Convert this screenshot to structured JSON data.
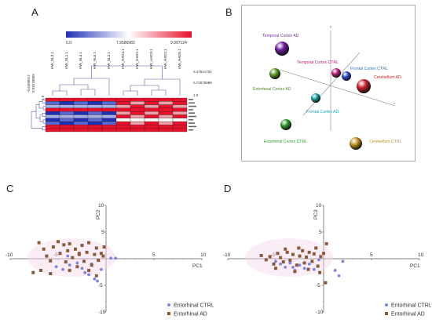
{
  "panels": {
    "A": {
      "letter": "A",
      "colorbar": {
        "min_label": "0.0",
        "mid_label": "7.9586983",
        "max_label": "9.997124",
        "colors": [
          "#1f30b5",
          "#ffffff",
          "#e8102a"
        ]
      },
      "columns": [
        "HW_NL3.1",
        "HW_NL1.1",
        "HW_NL4.1",
        "HW_NL6.1",
        "HW_NL2.1",
        "HW_HAD4.1",
        "HW_HAD1.1",
        "HW_HAD3.1",
        "HW_HAD2.1",
        "HW_HAD5.1"
      ],
      "dendro_scale": [
        "0.47941732",
        "0.73978889",
        "1.0"
      ],
      "row_scale": [
        "-0.6400017",
        "0.02578869",
        "1.0"
      ],
      "row_count": 10
    },
    "B": {
      "letter": "B",
      "axis_labels": {
        "y": "y",
        "x": "x"
      },
      "points": [
        {
          "label": "Temporal Cortex AD",
          "color": "#6a1c9a",
          "label_color": "#7a2aa8"
        },
        {
          "label": "Temporal Cortex CTRL",
          "color": "#c0207a",
          "label_color": "#c0207a"
        },
        {
          "label": "Frontal Cortex CTRL",
          "color": "#2a4bd0",
          "label_color": "#2a70c0"
        },
        {
          "label": "Cerebellum AD",
          "color": "#c8202a",
          "label_color": "#d02020"
        },
        {
          "label": "Entorhinal Cortex AD",
          "color": "#5a9a20",
          "label_color": "#4a8a30"
        },
        {
          "label": "Frontal Cortex AD",
          "color": "#1aa0a0",
          "label_color": "#20a0b0"
        },
        {
          "label": "Entorhinal Cortex CTRL",
          "color": "#2a9a2a",
          "label_color": "#2a9a2a"
        },
        {
          "label": "Cerebellum CTRL",
          "color": "#c09020",
          "label_color": "#c09020"
        }
      ]
    },
    "C": {
      "letter": "C",
      "chart_ref": 0
    },
    "D": {
      "letter": "D",
      "chart_ref": 1
    }
  },
  "chart_data": [
    {
      "type": "scatter",
      "title": "",
      "xlabel": "PC1",
      "ylabel": "PC2",
      "xlim": [
        -10,
        10
      ],
      "ylim": [
        -10,
        10
      ],
      "xticks": [
        -10,
        -5,
        0,
        5,
        10
      ],
      "yticks": [
        10,
        5,
        -5,
        -10
      ],
      "legend": "bottom-center",
      "series": [
        {
          "name": "Entorhinal CTRL",
          "color": "#7b86e0",
          "marker": "circle",
          "points": [
            [
              -5.2,
              -1.5
            ],
            [
              -4.5,
              -2.0
            ],
            [
              -3.8,
              -1.2
            ],
            [
              -2.5,
              -1.8
            ],
            [
              -2.2,
              -2.6
            ],
            [
              -1.8,
              -3.0
            ],
            [
              -1.2,
              -3.8
            ],
            [
              -0.9,
              -4.2
            ],
            [
              -0.5,
              -2.0
            ],
            [
              0.5,
              0.1
            ],
            [
              1.0,
              0.1
            ],
            [
              -3.0,
              -0.8
            ],
            [
              -1.5,
              -1.0
            ],
            [
              -4.0,
              0.5
            ]
          ]
        },
        {
          "name": "Entorhinal AD",
          "color": "#8a5a3a",
          "marker": "square",
          "points": [
            [
              -7.0,
              3.0
            ],
            [
              -6.5,
              1.8
            ],
            [
              -6.2,
              0.5
            ],
            [
              -5.8,
              -0.4
            ],
            [
              -5.5,
              2.2
            ],
            [
              -5.0,
              3.2
            ],
            [
              -4.8,
              1.0
            ],
            [
              -4.4,
              2.6
            ],
            [
              -4.2,
              -0.6
            ],
            [
              -4.0,
              1.5
            ],
            [
              -3.8,
              2.8
            ],
            [
              -3.5,
              0.2
            ],
            [
              -3.2,
              1.8
            ],
            [
              -3.0,
              -1.5
            ],
            [
              -2.8,
              0.8
            ],
            [
              -2.5,
              2.5
            ],
            [
              -2.3,
              -0.5
            ],
            [
              -2.0,
              1.2
            ],
            [
              -1.8,
              3.0
            ],
            [
              -1.5,
              -1.2
            ],
            [
              -1.2,
              0.8
            ],
            [
              -1.0,
              2.0
            ],
            [
              -0.8,
              -0.3
            ],
            [
              -0.5,
              1.0
            ],
            [
              -0.2,
              2.2
            ],
            [
              -7.6,
              -2.6
            ],
            [
              -6.8,
              -2.2
            ],
            [
              -5.8,
              -2.8
            ],
            [
              -3.8,
              -2.2
            ],
            [
              -1.8,
              -2.2
            ],
            [
              -1.0,
              -3.2
            ],
            [
              -2.8,
              1.0
            ],
            [
              -0.3,
              0.5
            ]
          ]
        }
      ]
    },
    {
      "type": "scatter",
      "title": "",
      "xlabel": "PC1",
      "ylabel": "PC3",
      "xlim": [
        -10,
        10
      ],
      "ylim": [
        -10,
        10
      ],
      "xticks": [
        -10,
        -5,
        0,
        5,
        10
      ],
      "yticks": [
        10,
        5,
        -5,
        -10
      ],
      "legend": "bottom-center",
      "series": [
        {
          "name": "Entorhinal CTRL",
          "color": "#7b86e0",
          "marker": "circle",
          "points": [
            [
              -5.0,
              -0.5
            ],
            [
              -4.5,
              -1.0
            ],
            [
              -4.0,
              -1.6
            ],
            [
              -3.5,
              -0.8
            ],
            [
              -3.0,
              -2.2
            ],
            [
              -2.5,
              -1.2
            ],
            [
              -2.0,
              -1.8
            ],
            [
              -1.5,
              -1.0
            ],
            [
              -1.0,
              -2.0
            ],
            [
              1.2,
              -2.2
            ],
            [
              1.6,
              -3.2
            ],
            [
              2.0,
              -0.5
            ],
            [
              -0.5,
              -0.2
            ],
            [
              -3.2,
              -1.6
            ]
          ]
        },
        {
          "name": "Entorhinal AD",
          "color": "#8a5a3a",
          "marker": "square",
          "points": [
            [
              -6.5,
              0.6
            ],
            [
              -6.0,
              -0.2
            ],
            [
              -5.6,
              0.4
            ],
            [
              -5.2,
              -1.0
            ],
            [
              -4.8,
              1.0
            ],
            [
              -4.5,
              0.2
            ],
            [
              -4.2,
              -0.6
            ],
            [
              -3.8,
              1.2
            ],
            [
              -3.5,
              -0.3
            ],
            [
              -3.2,
              0.8
            ],
            [
              -2.8,
              -1.2
            ],
            [
              -2.5,
              0.5
            ],
            [
              -2.2,
              1.5
            ],
            [
              -2.0,
              -0.8
            ],
            [
              -1.8,
              0.3
            ],
            [
              -1.5,
              1.2
            ],
            [
              -1.2,
              -0.5
            ],
            [
              -1.0,
              0.9
            ],
            [
              -0.8,
              2.0
            ],
            [
              -0.6,
              -1.4
            ],
            [
              -0.3,
              0.4
            ],
            [
              0.0,
              1.0
            ],
            [
              0.3,
              2.8
            ],
            [
              -0.4,
              -2.6
            ],
            [
              0.2,
              -4.5
            ],
            [
              -5.0,
              -1.8
            ],
            [
              -3.0,
              -2.4
            ],
            [
              -4.0,
              1.8
            ],
            [
              -1.6,
              -2.0
            ],
            [
              -2.6,
              2.0
            ]
          ]
        }
      ]
    }
  ]
}
